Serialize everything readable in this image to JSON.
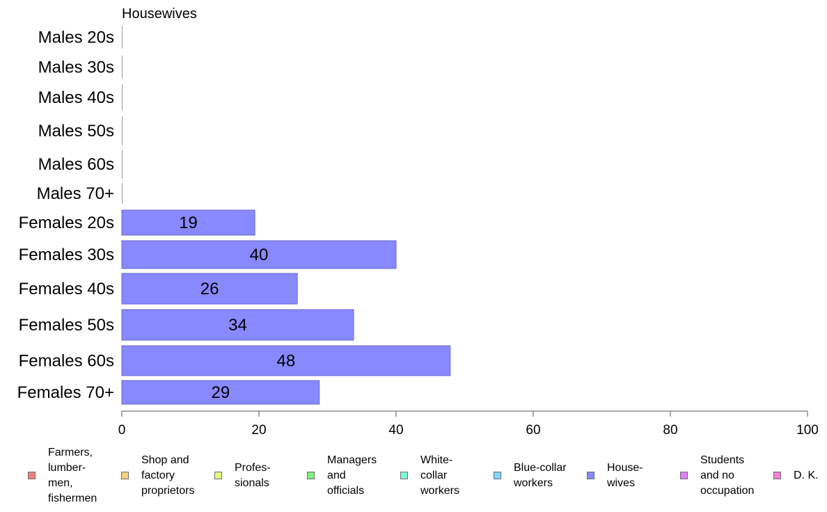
{
  "chart_data": {
    "type": "bar",
    "orientation": "horizontal",
    "title": "Housewives",
    "categories": [
      "Males 20s",
      "Males 30s",
      "Males 40s",
      "Males 50s",
      "Males 60s",
      "Males 70+",
      "Females 20s",
      "Females 30s",
      "Females 40s",
      "Females 50s",
      "Females 60s",
      "Females 70+"
    ],
    "series": [
      {
        "name": "House-\nwives",
        "color": "#8888ff",
        "values": [
          0,
          0,
          0,
          0,
          0,
          0,
          19.4,
          40,
          25.6,
          33.8,
          47.9,
          28.8
        ],
        "labels": [
          "",
          "",
          "",
          "",
          "",
          "",
          "19",
          "40",
          "26",
          "34",
          "48",
          "29"
        ]
      }
    ],
    "xlim": [
      0,
      100
    ],
    "xticks": [
      "0",
      "20",
      "40",
      "60",
      "80",
      "100"
    ],
    "grid": false,
    "legend_position": "bottom"
  },
  "legend": [
    {
      "label": "Farmers,\nlumber-\nmen,\nfishermen",
      "color": "#f08080",
      "icon": "square-swatch"
    },
    {
      "label": "Shop and\nfactory\nproprietors",
      "color": "#f8d080",
      "icon": "square-swatch"
    },
    {
      "label": "Profes-\nsionals",
      "color": "#e0f880",
      "icon": "square-swatch"
    },
    {
      "label": "Managers\nand\nofficials",
      "color": "#80f080",
      "icon": "square-swatch"
    },
    {
      "label": "White-\ncollar\nworkers",
      "color": "#80f8d8",
      "icon": "square-swatch"
    },
    {
      "label": "Blue-collar\nworkers",
      "color": "#80d8f8",
      "icon": "square-swatch"
    },
    {
      "label": "House-\nwives",
      "color": "#8888ff",
      "icon": "square-swatch"
    },
    {
      "label": "Students\nand no\noccupation",
      "color": "#e080f8",
      "icon": "square-swatch"
    },
    {
      "label": "D. K.",
      "color": "#f880d0",
      "icon": "square-swatch"
    }
  ]
}
